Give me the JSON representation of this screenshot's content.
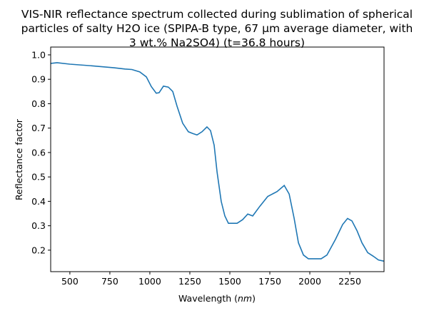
{
  "chart_data": {
    "type": "line",
    "title_lines": [
      "VIS-NIR reflectance spectrum collected during sublimation of spherical",
      "particles of salty H2O ice (SPIPA-B type, 67 µm average diameter, with",
      "3 wt.% Na2SO4) (t=36.8 hours)"
    ],
    "xlabel": "Wavelength (nm)",
    "ylabel": "Reflectance factor",
    "xlim": [
      380,
      2464
    ],
    "ylim": [
      0.112,
      1.032
    ],
    "xticks": [
      "500",
      "750",
      "1000",
      "1250",
      "1500",
      "1750",
      "2000",
      "2250"
    ],
    "yticks": [
      "0.2",
      "0.3",
      "0.4",
      "0.5",
      "0.6",
      "0.7",
      "0.8",
      "0.9",
      "1.0"
    ],
    "grid": false,
    "color": "#1f77b4",
    "x": [
      380,
      420,
      500,
      643,
      777,
      844,
      888,
      937,
      978,
      1009,
      1040,
      1058,
      1085,
      1116,
      1143,
      1170,
      1205,
      1241,
      1268,
      1295,
      1326,
      1357,
      1379,
      1402,
      1420,
      1446,
      1469,
      1491,
      1545,
      1580,
      1612,
      1643,
      1688,
      1737,
      1795,
      1840,
      1871,
      1902,
      1929,
      1960,
      1991,
      2071,
      2107,
      2161,
      2205,
      2236,
      2263,
      2295,
      2326,
      2362,
      2397,
      2429,
      2464
    ],
    "y": [
      0.965,
      0.968,
      0.962,
      0.955,
      0.947,
      0.942,
      0.94,
      0.93,
      0.91,
      0.87,
      0.843,
      0.845,
      0.872,
      0.868,
      0.85,
      0.79,
      0.72,
      0.685,
      0.678,
      0.672,
      0.685,
      0.705,
      0.69,
      0.63,
      0.52,
      0.4,
      0.34,
      0.31,
      0.31,
      0.325,
      0.348,
      0.34,
      0.38,
      0.42,
      0.44,
      0.465,
      0.43,
      0.33,
      0.23,
      0.18,
      0.165,
      0.165,
      0.18,
      0.245,
      0.305,
      0.33,
      0.32,
      0.28,
      0.23,
      0.19,
      0.175,
      0.16,
      0.155
    ]
  }
}
